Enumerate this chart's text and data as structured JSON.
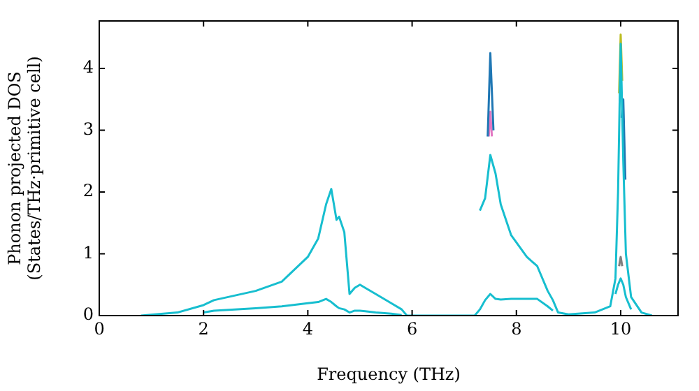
{
  "chart_data": {
    "type": "line",
    "xlabel": "Frequency (THz)",
    "ylabel": "Phonon projected DOS\n(States/THz·primitive cell)",
    "x": [
      0.8,
      1.5,
      2,
      2.2,
      3,
      3.5,
      4,
      4.2,
      4.35,
      4.45,
      4.55,
      4.6,
      4.7,
      4.8,
      4.9,
      5,
      5.1,
      5.3,
      5.6,
      5.8,
      5.9,
      7.2,
      7.3,
      7.4,
      7.5,
      7.6,
      7.7,
      7.9,
      8.2,
      8.4,
      8.6,
      8.7,
      8.8,
      9.0,
      9.5,
      9.8,
      9.9,
      9.95,
      10.0,
      10.05,
      10.1,
      10.2,
      10.4,
      10.6
    ],
    "series": [
      {
        "color": "#17becf",
        "values": [
          null,
          null,
          0.05,
          0.08,
          0.12,
          0.15,
          0.2,
          0.22,
          0.27,
          0.22,
          0.15,
          0.12,
          0.1,
          0.05,
          0.08,
          0.08,
          0.07,
          0.05,
          0.03,
          0.01,
          null,
          null,
          1.7,
          1.9,
          2.6,
          2.3,
          1.8,
          1.3,
          0.95,
          0.8,
          0.4,
          0.25,
          0.05,
          0.02,
          0.05,
          0.15,
          0.6,
          2.0,
          4.4,
          2.5,
          1.0,
          0.3,
          0.05,
          0
        ]
      },
      {
        "color": "#17becf",
        "values": [
          0,
          0.05,
          0.17,
          0.25,
          0.4,
          0.55,
          0.95,
          1.25,
          1.8,
          2.05,
          1.55,
          1.6,
          1.35,
          0.35,
          0.45,
          0.5,
          0.45,
          0.35,
          0.2,
          0.1,
          0,
          0,
          0.1,
          0.25,
          0.35,
          0.27,
          0.26,
          0.27,
          0.27,
          0.27,
          0.15,
          0.08,
          null,
          null,
          null,
          null,
          0.35,
          0.5,
          0.6,
          0.5,
          0.3,
          0.1,
          null,
          null
        ]
      },
      {
        "color": "#1f77b4",
        "x": [
          7.45,
          7.5,
          7.56,
          9.0,
          10.02,
          10.05,
          10.09
        ],
        "values": [
          2.9,
          4.25,
          3.0,
          null,
          3.2,
          3.5,
          2.2
        ]
      },
      {
        "color": "#e377c2",
        "x": [
          7.47,
          7.5,
          7.53
        ],
        "values": [
          2.9,
          3.3,
          2.9
        ]
      },
      {
        "color": "#bcbd22",
        "x": [
          9.97,
          10.0,
          10.03
        ],
        "values": [
          3.6,
          4.55,
          3.8
        ]
      },
      {
        "color": "#7f7f7f",
        "x": [
          9.97,
          10.0,
          10.03
        ],
        "values": [
          0.8,
          0.95,
          0.8
        ]
      }
    ],
    "xlim": [
      0,
      11.1
    ],
    "ylim": [
      0,
      4.77
    ],
    "xticks": [
      0,
      2,
      4,
      6,
      8,
      10
    ],
    "yticks": [
      0,
      1,
      2,
      3,
      4
    ],
    "grid": false,
    "legend": false,
    "marker": "none",
    "line_style": "solid"
  }
}
